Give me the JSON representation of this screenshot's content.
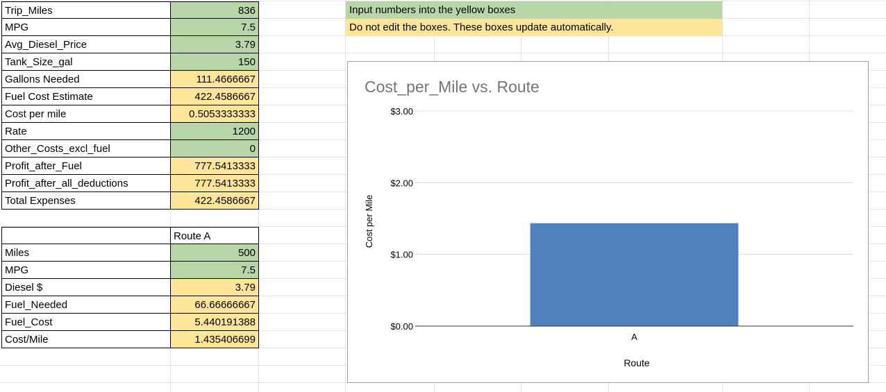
{
  "top_table": [
    {
      "label": "Trip_Miles",
      "value": "836",
      "kind": "input"
    },
    {
      "label": "MPG",
      "value": "7.5",
      "kind": "input"
    },
    {
      "label": "Avg_Diesel_Price",
      "value": "3.79",
      "kind": "input"
    },
    {
      "label": "Tank_Size_gal",
      "value": "150",
      "kind": "input"
    },
    {
      "label": "Gallons Needed",
      "value": "111.4666667",
      "kind": "auto"
    },
    {
      "label": "Fuel Cost Estimate",
      "value": "422.4586667",
      "kind": "auto"
    },
    {
      "label": "Cost per mile",
      "value": "0.5053333333",
      "kind": "auto"
    },
    {
      "label": "Rate",
      "value": "1200",
      "kind": "input"
    },
    {
      "label": "Other_Costs_excl_fuel",
      "value": "0",
      "kind": "input"
    },
    {
      "label": "Profit_after_Fuel",
      "value": "777.5413333",
      "kind": "auto"
    },
    {
      "label": "Profit_after_all_deductions",
      "value": "777.5413333",
      "kind": "auto"
    },
    {
      "label": "Total Expenses",
      "value": "422.4586667",
      "kind": "auto"
    }
  ],
  "route_table": {
    "header": "Route A",
    "rows": [
      {
        "label": "Miles",
        "value": "500",
        "kind": "input"
      },
      {
        "label": "MPG",
        "value": "7.5",
        "kind": "input"
      },
      {
        "label": "Diesel $",
        "value": "3.79",
        "kind": "auto"
      },
      {
        "label": "Fuel_Needed",
        "value": "66.66666667",
        "kind": "auto"
      },
      {
        "label": "Fuel_Cost",
        "value": "5.440191388",
        "kind": "auto"
      },
      {
        "label": "Cost/Mile",
        "value": "1.435406699",
        "kind": "auto"
      }
    ]
  },
  "notes": {
    "input": "Input numbers into the yellow boxes",
    "auto": "Do not edit the  boxes. These boxes update automatically."
  },
  "colors": {
    "input": "#b7d7a8",
    "auto": "#ffe599",
    "bar": "#4f81bd"
  },
  "chart_data": {
    "type": "bar",
    "title": "Cost_per_Mile vs. Route",
    "xlabel": "Route",
    "ylabel": "Cost per Mile",
    "categories": [
      "A"
    ],
    "values": [
      1.435406699
    ],
    "ylim": [
      0,
      3
    ],
    "yticks": [
      "$0.00",
      "$1.00",
      "$2.00",
      "$3.00"
    ],
    "grid": true
  }
}
